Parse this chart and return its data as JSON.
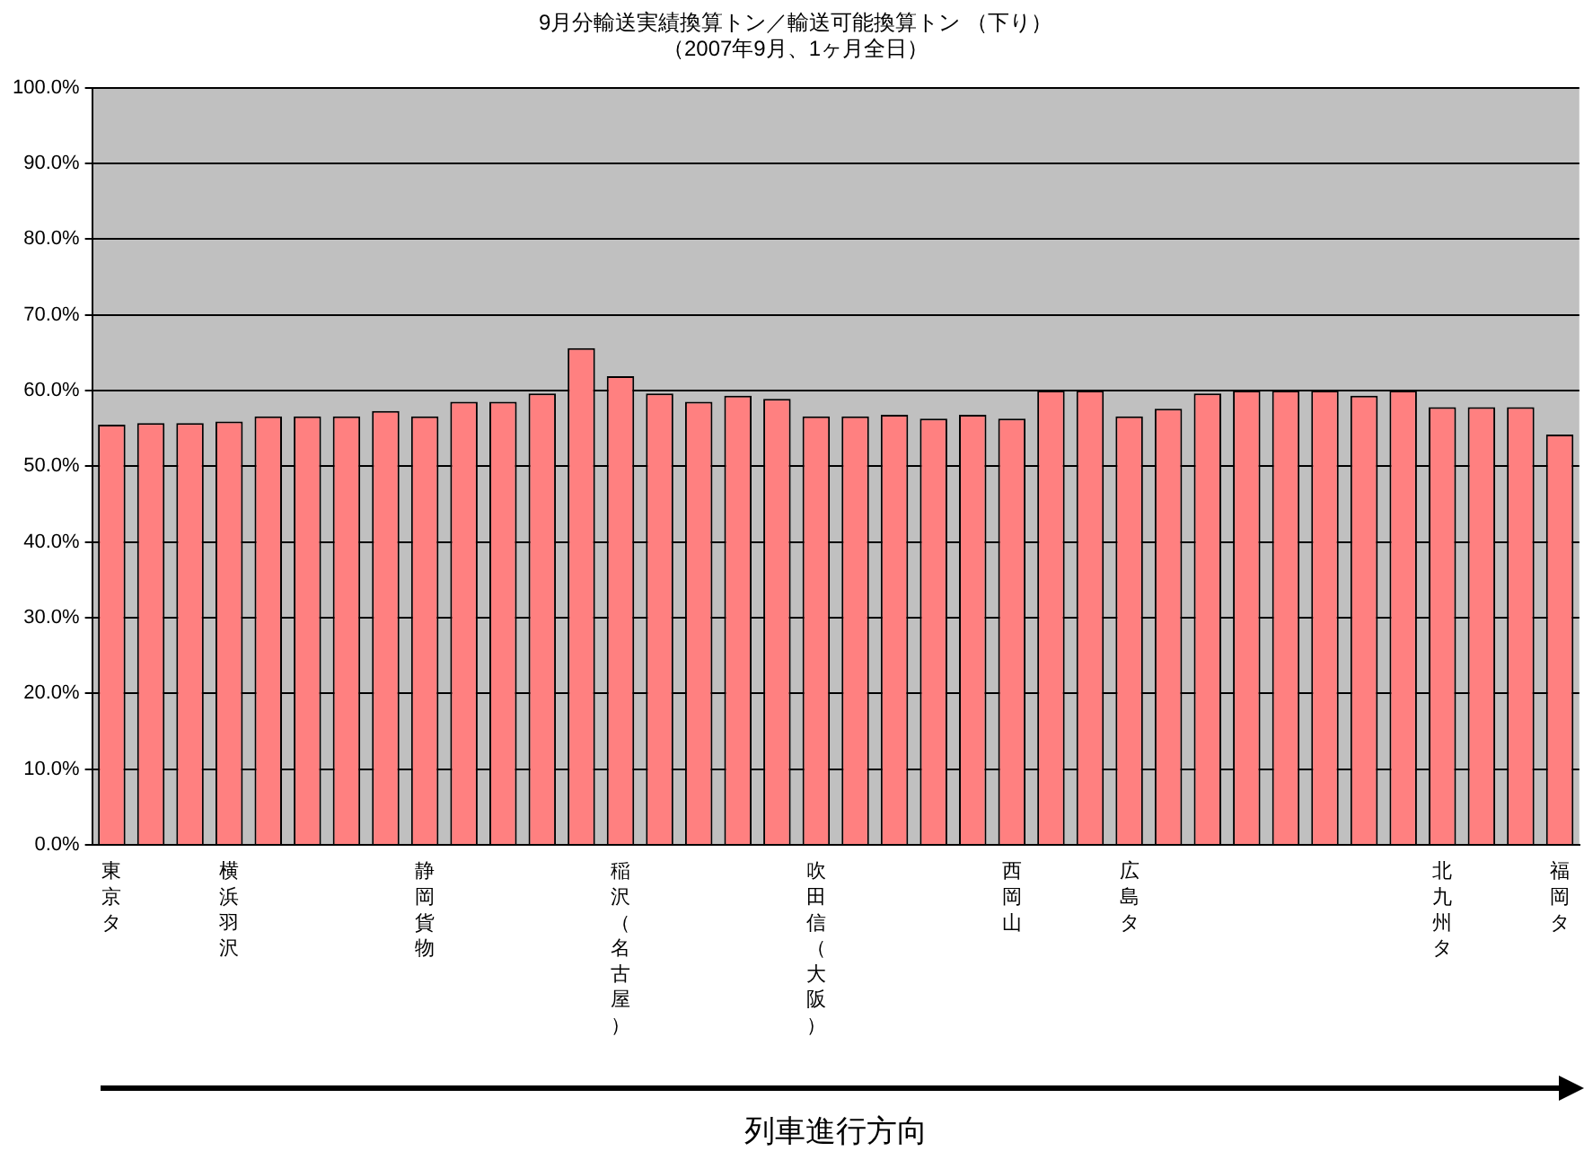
{
  "chart_data": {
    "type": "bar",
    "title": "9月分輸送実績換算トン／輸送可能換算トン （下り）",
    "subtitle": "（2007年9月、1ヶ月全日）",
    "xlabel": "列車進行方向",
    "categories": [
      "東京タ",
      null,
      null,
      "横浜羽沢",
      null,
      null,
      null,
      null,
      "静岡貨物",
      null,
      null,
      null,
      null,
      "稲沢（名古屋）",
      null,
      null,
      null,
      null,
      "吹田信（大阪）",
      null,
      null,
      null,
      null,
      "西岡山",
      null,
      null,
      "広島タ",
      null,
      null,
      null,
      null,
      null,
      null,
      null,
      "北九州タ",
      null,
      null,
      "福岡タ"
    ],
    "values": [
      55.5,
      55.7,
      55.7,
      55.9,
      56.6,
      56.6,
      56.6,
      57.3,
      56.6,
      58.5,
      58.5,
      59.6,
      65.6,
      61.9,
      59.6,
      58.5,
      59.3,
      58.9,
      56.6,
      56.6,
      56.8,
      56.3,
      56.8,
      56.3,
      60,
      60,
      56.6,
      57.6,
      59.6,
      60,
      60,
      60,
      59.3,
      60,
      57.8,
      57.8,
      57.8,
      54.2
    ],
    "color": "#ff8080",
    "ylim": [
      0,
      100
    ],
    "yticks": [
      {
        "value": 0,
        "label": "0.0%"
      },
      {
        "value": 10,
        "label": "10.0%"
      },
      {
        "value": 20,
        "label": "20.0%"
      },
      {
        "value": 30,
        "label": "30.0%"
      },
      {
        "value": 40,
        "label": "40.0%"
      },
      {
        "value": 50,
        "label": "50.0%"
      },
      {
        "value": 60,
        "label": "60.0%"
      },
      {
        "value": 70,
        "label": "70.0%"
      },
      {
        "value": 80,
        "label": "80.0%"
      },
      {
        "value": 90,
        "label": "90.0%"
      },
      {
        "value": 100,
        "label": "100.0%"
      }
    ],
    "grid": "y",
    "legend": false
  }
}
